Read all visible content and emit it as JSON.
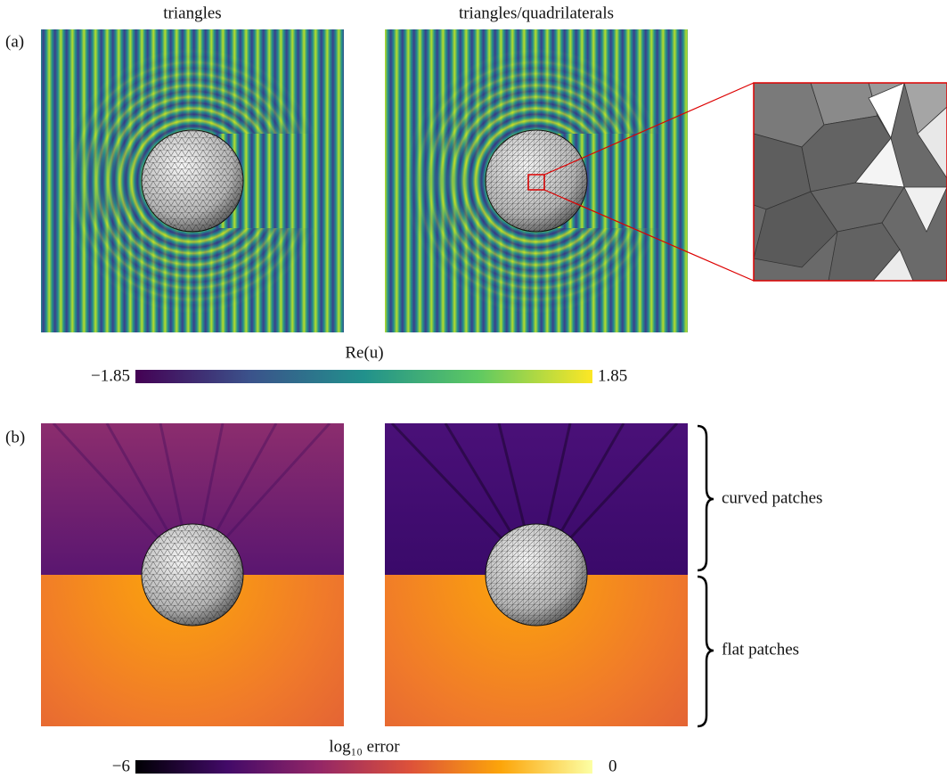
{
  "panel_a": {
    "label": "(a)",
    "titles": [
      "triangles",
      "triangles/quadrilaterals"
    ],
    "colorbar": {
      "label": "Re(u)",
      "min_label": "−1.85",
      "max_label": "1.85"
    }
  },
  "panel_b": {
    "label": "(b)",
    "annotations": [
      "curved patches",
      "flat patches"
    ],
    "colorbar": {
      "label": "log₁₀ error",
      "min_label": "−6",
      "max_label": "0"
    }
  }
}
